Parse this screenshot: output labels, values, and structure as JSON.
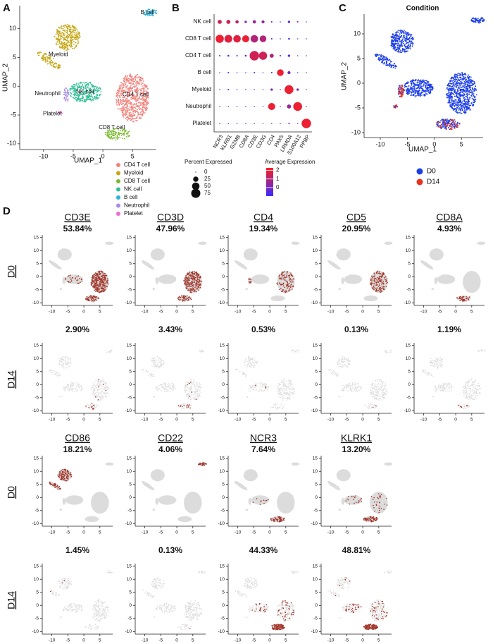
{
  "panel_a": {
    "letter": "A",
    "x_label": "UMAP_1",
    "y_label": "UMAP_2",
    "xlim": [
      -14,
      9
    ],
    "ylim": [
      -11,
      14
    ],
    "xticks": [
      -10,
      -5,
      0,
      5
    ],
    "yticks": [
      -10,
      -5,
      0,
      5,
      10
    ],
    "clusters": [
      {
        "name": "CD4 T cell",
        "color": "#f4837d"
      },
      {
        "name": "Myeloid",
        "color": "#c5a716"
      },
      {
        "name": "CD8 T cell",
        "color": "#79b82c"
      },
      {
        "name": "NK cell",
        "color": "#2fbf96"
      },
      {
        "name": "B cell",
        "color": "#2ab3e0"
      },
      {
        "name": "Neutrophil",
        "color": "#a78be8"
      },
      {
        "name": "Platelet",
        "color": "#f06bd6"
      }
    ]
  },
  "panel_b": {
    "letter": "B",
    "rows": [
      "NK cell",
      "CD8 T cell",
      "CD4 T cell",
      "B cell",
      "Myeloid",
      "Neutrophil",
      "Platelet"
    ],
    "genes": [
      "NCR3",
      "KLRB1",
      "GZMB",
      "CD8A",
      "CD3E",
      "CD3G",
      "CD4",
      "PAX5",
      "LRMDA",
      "S100A12",
      "PPBP"
    ],
    "percent": [
      [
        15,
        15,
        10,
        5,
        10,
        8,
        2,
        1,
        5,
        2,
        1
      ],
      [
        60,
        55,
        50,
        45,
        50,
        40,
        2,
        1,
        3,
        1,
        1
      ],
      [
        2,
        3,
        2,
        3,
        80,
        60,
        15,
        2,
        5,
        1,
        1
      ],
      [
        1,
        2,
        1,
        1,
        2,
        1,
        2,
        40,
        8,
        1,
        1
      ],
      [
        1,
        2,
        1,
        1,
        1,
        1,
        5,
        1,
        70,
        5,
        1
      ],
      [
        1,
        1,
        1,
        1,
        1,
        1,
        45,
        1,
        15,
        70,
        1
      ],
      [
        1,
        1,
        1,
        1,
        1,
        1,
        1,
        1,
        2,
        1,
        80
      ]
    ],
    "expression": [
      [
        1.5,
        1.5,
        1.2,
        0,
        0.5,
        0.5,
        -0.5,
        -0.5,
        -0.3,
        -0.5,
        -0.5
      ],
      [
        2,
        1.8,
        1.8,
        2,
        1,
        1,
        -0.5,
        -0.5,
        -0.5,
        -0.5,
        -0.5
      ],
      [
        -0.5,
        -0.3,
        -0.5,
        -0.5,
        1.5,
        1.5,
        1,
        -0.5,
        -0.5,
        -0.5,
        -0.5
      ],
      [
        -0.5,
        -0.5,
        -0.5,
        -0.5,
        -0.5,
        -0.5,
        -0.5,
        2,
        0,
        -0.5,
        -0.5
      ],
      [
        -0.5,
        -0.5,
        -0.5,
        -0.5,
        -0.5,
        -0.5,
        0,
        -0.5,
        2,
        0,
        -0.5
      ],
      [
        -0.5,
        -0.5,
        -0.5,
        -0.5,
        -0.5,
        -0.5,
        2,
        -0.5,
        0.5,
        2,
        -0.5
      ],
      [
        -0.5,
        -0.5,
        -0.5,
        -0.5,
        -0.5,
        -0.5,
        -0.5,
        -0.5,
        -0.5,
        -0.5,
        2
      ]
    ],
    "size_legend_title": "Percent Expressed",
    "size_ticks": [
      0,
      25,
      50,
      75
    ],
    "color_legend_title": "Average Expression",
    "color_ticks": [
      2,
      1,
      0
    ],
    "color_lim": [
      -1,
      2.3
    ],
    "low_color": "#3a2cff",
    "high_color": "#ff1e1e"
  },
  "panel_c": {
    "letter": "C",
    "title": "Condition",
    "x_label": "UMAP_1",
    "y_label": "UMAP_2",
    "xlim": [
      -13,
      9
    ],
    "ylim": [
      -11,
      14
    ],
    "xticks": [
      -10,
      -5,
      0,
      5
    ],
    "yticks": [
      -10,
      -5,
      0,
      5,
      10
    ],
    "groups": [
      {
        "name": "D0",
        "color": "#1d3fe6"
      },
      {
        "name": "D14",
        "color": "#e8321e"
      }
    ]
  },
  "panel_d": {
    "letter": "D",
    "conditions": [
      "D0",
      "D14"
    ],
    "xlim": [
      -13,
      9
    ],
    "ylim": [
      -11,
      16
    ],
    "xticks": [
      -10,
      -5,
      0,
      5
    ],
    "yticks": [
      -10,
      -5,
      0,
      5,
      10,
      15
    ],
    "high_color": "#a3362a",
    "low_color": "#dcdcdc",
    "genes": [
      {
        "name": "CD3E",
        "D0": "53.84%",
        "D14": "2.90%"
      },
      {
        "name": "CD3D",
        "D0": "47.96%",
        "D14": "3.43%"
      },
      {
        "name": "CD4",
        "D0": "19.34%",
        "D14": "0.53%"
      },
      {
        "name": "CD5",
        "D0": "20.95%",
        "D14": "0.13%"
      },
      {
        "name": "CD8A",
        "D0": "4.93%",
        "D14": "1.19%"
      },
      {
        "name": "CD86",
        "D0": "18.21%",
        "D14": "1.45%"
      },
      {
        "name": "CD22",
        "D0": "4.06%",
        "D14": "0.13%"
      },
      {
        "name": "NCR3",
        "D0": "7.64%",
        "D14": "44.33%"
      },
      {
        "name": "KLRK1",
        "D0": "13.20%",
        "D14": "48.81%"
      }
    ]
  }
}
